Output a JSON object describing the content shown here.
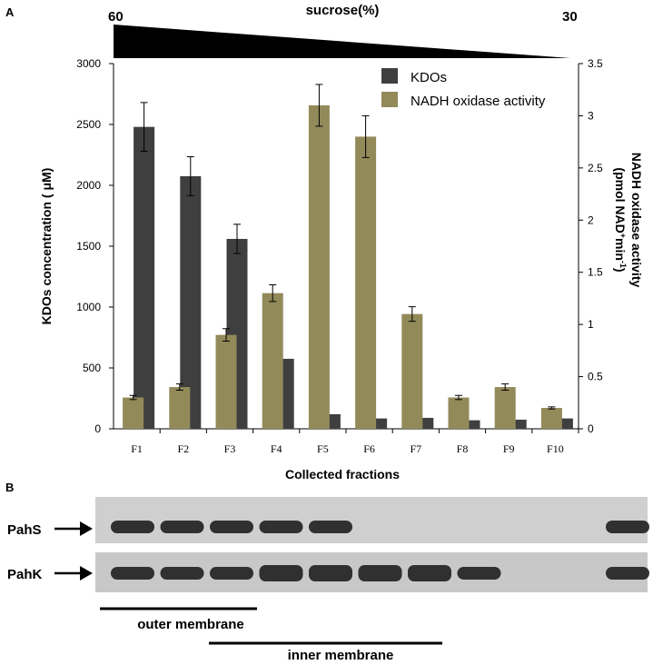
{
  "panels": {
    "a": "A",
    "b": "B"
  },
  "gradient": {
    "label": "sucrose(%)",
    "left": "60",
    "right": "30"
  },
  "chart_data": {
    "type": "bar",
    "categories": [
      "F1",
      "F2",
      "F3",
      "F4",
      "F5",
      "F6",
      "F7",
      "F8",
      "F9",
      "F10"
    ],
    "xlabel": "Collected  fractions",
    "ylabel": "KDOs concentration ( μM)",
    "y2label_line1": "NADH oxidase activity",
    "y2label_line2": "(pmol NAD",
    "y2label_sup": "+",
    "y2label_line2b": "min",
    "y2label_sup2": "-1",
    "y2label_line2c": ")",
    "ylim": [
      0,
      3000
    ],
    "y2lim": [
      0,
      3.5
    ],
    "yticks": [
      "0",
      "500",
      "1000",
      "1500",
      "2000",
      "2500",
      "3000"
    ],
    "y2ticks": [
      "0",
      "0.5",
      "1",
      "1.5",
      "2",
      "2.5",
      "3",
      "3.5"
    ],
    "legend_position": "top-right",
    "series": [
      {
        "name": "KDOs",
        "axis": "left",
        "color": "#3f3f3f",
        "values": [
          2480,
          2075,
          1560,
          575,
          120,
          85,
          90,
          70,
          75,
          85
        ],
        "errors": [
          200,
          160,
          120,
          0,
          0,
          0,
          0,
          0,
          0,
          0
        ]
      },
      {
        "name": "NADH oxidase activity",
        "axis": "right",
        "color": "#938a5a",
        "values": [
          0.3,
          0.4,
          0.9,
          1.3,
          3.1,
          2.8,
          1.1,
          0.3,
          0.4,
          0.2
        ],
        "errors": [
          0.02,
          0.03,
          0.06,
          0.08,
          0.2,
          0.2,
          0.07,
          0.02,
          0.03,
          0.01
        ]
      }
    ]
  },
  "gel": {
    "rows": [
      {
        "label": "PahS",
        "bands": [
          1,
          1,
          1,
          1,
          1,
          0,
          0,
          0,
          0,
          0,
          1
        ]
      },
      {
        "label": "PahK",
        "bands": [
          1,
          1,
          1,
          1,
          1,
          1,
          1,
          1,
          0,
          0,
          1
        ]
      }
    ],
    "outer_label": "outer  membrane",
    "inner_label": "inner membrane"
  }
}
